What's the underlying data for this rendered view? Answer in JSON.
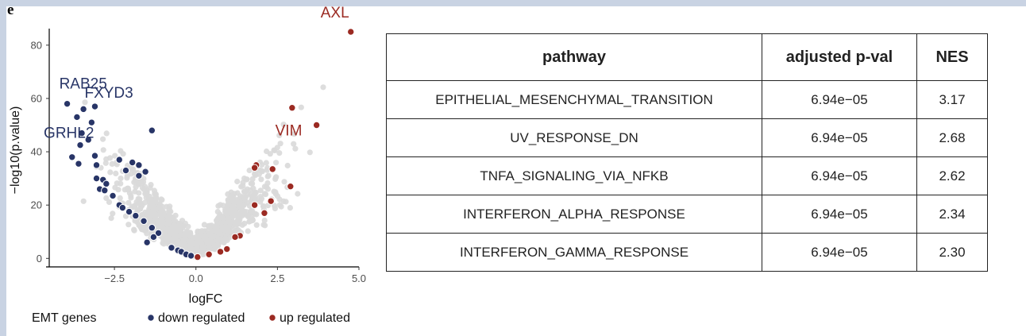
{
  "panel_label": "e",
  "chart_data": [
    {
      "type": "scatter",
      "title": "",
      "xlabel": "logFC",
      "ylabel": "−log10(p.value)",
      "xlim": [
        -4.5,
        5.0
      ],
      "ylim": [
        -2,
        88
      ],
      "xticks": [
        -2.5,
        0.0,
        2.5,
        5.0
      ],
      "xtick_labels": [
        "−2.5",
        "0.0",
        "2.5",
        "5.0"
      ],
      "yticks": [
        0,
        20,
        40,
        60,
        80
      ],
      "ytick_labels": [
        "0",
        "20",
        "40",
        "60",
        "80"
      ],
      "grid": false,
      "legend": {
        "placement": "bottom",
        "title": "EMT genes",
        "entries": [
          {
            "name": "down regulated",
            "color": "#283567"
          },
          {
            "name": "up regulated",
            "color": "#9b2a22"
          }
        ]
      },
      "background_color": "#d9d9d9",
      "series": [
        {
          "name": "down regulated",
          "color": "#283567",
          "points": [
            [
              -3.95,
              58
            ],
            [
              -3.65,
              53
            ],
            [
              -3.45,
              56
            ],
            [
              -3.1,
              57
            ],
            [
              -3.2,
              51
            ],
            [
              -3.5,
              47
            ],
            [
              -3.3,
              44.5
            ],
            [
              -3.55,
              42.5
            ],
            [
              -3.8,
              38
            ],
            [
              -3.6,
              35.5
            ],
            [
              -3.1,
              38.5
            ],
            [
              -3.05,
              35
            ],
            [
              -1.35,
              48
            ],
            [
              -2.35,
              37
            ],
            [
              -1.95,
              36
            ],
            [
              -1.75,
              35
            ],
            [
              -2.15,
              33
            ],
            [
              -1.55,
              32.5
            ],
            [
              -1.75,
              31
            ],
            [
              -3.05,
              30
            ],
            [
              -2.85,
              29.5
            ],
            [
              -2.75,
              28
            ],
            [
              -2.95,
              26
            ],
            [
              -2.8,
              25.5
            ],
            [
              -2.55,
              23.5
            ],
            [
              -2.35,
              20
            ],
            [
              -2.25,
              19
            ],
            [
              -2.05,
              17.5
            ],
            [
              -1.85,
              16
            ],
            [
              -1.6,
              14
            ],
            [
              -1.35,
              11.5
            ],
            [
              -1.15,
              9.5
            ],
            [
              -1.3,
              8
            ],
            [
              -1.5,
              6
            ],
            [
              -0.75,
              4
            ],
            [
              -0.55,
              3
            ],
            [
              -0.45,
              2.5
            ],
            [
              -0.3,
              1.5
            ],
            [
              -0.15,
              1
            ]
          ]
        },
        {
          "name": "up regulated",
          "color": "#9b2a22",
          "points": [
            [
              4.75,
              85
            ],
            [
              2.95,
              56.5
            ],
            [
              3.7,
              50
            ],
            [
              1.85,
              35
            ],
            [
              1.8,
              34
            ],
            [
              2.35,
              33.5
            ],
            [
              2.9,
              27
            ],
            [
              2.3,
              21.5
            ],
            [
              1.8,
              20
            ],
            [
              2.1,
              17
            ],
            [
              1.35,
              8.5
            ],
            [
              1.2,
              8
            ],
            [
              0.95,
              3.5
            ],
            [
              0.75,
              2.5
            ],
            [
              0.4,
              1.5
            ],
            [
              0.05,
              0.5
            ]
          ]
        }
      ],
      "labels": [
        {
          "text": "AXL",
          "x": 4.75,
          "y": 85,
          "color": "#9b2a22"
        },
        {
          "text": "VIM",
          "x": 3.7,
          "y": 50,
          "color": "#9b2a22"
        },
        {
          "text": "RAB25",
          "x": -3.95,
          "y": 58,
          "color": "#283567"
        },
        {
          "text": "FXYD3",
          "x": -3.1,
          "y": 57,
          "color": "#283567"
        },
        {
          "text": "GRHL2",
          "x": -3.5,
          "y": 47,
          "color": "#283567"
        }
      ]
    },
    {
      "type": "table",
      "columns": [
        "pathway",
        "adjusted p-val",
        "NES"
      ],
      "rows": [
        [
          "EPITHELIAL_MESENCHYMAL_TRANSITION",
          "6.94e−05",
          "3.17"
        ],
        [
          "UV_RESPONSE_DN",
          "6.94e−05",
          "2.68"
        ],
        [
          "TNFA_SIGNALING_VIA_NFKB",
          "6.94e−05",
          "2.62"
        ],
        [
          "INTERFERON_ALPHA_RESPONSE",
          "6.94e−05",
          "2.34"
        ],
        [
          "INTERFERON_GAMMA_RESPONSE",
          "6.94e−05",
          "2.30"
        ]
      ]
    }
  ]
}
